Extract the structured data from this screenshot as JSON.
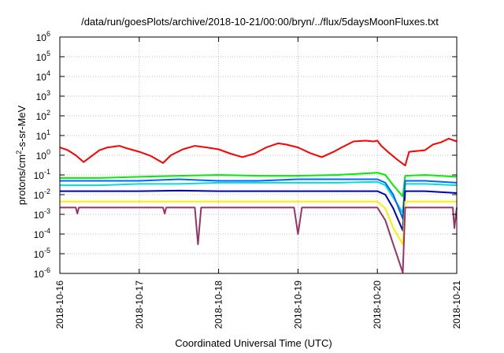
{
  "chart_data": {
    "type": "line",
    "title": "/data/run/goesPlots/archive/2018-10-21/00:00/bryn/../flux/5daysMoonFluxes.txt",
    "xlabel": "Coordinated Universal Time (UTC)",
    "ylabel": {
      "base": "protons/cm",
      "sup": "2",
      "rest": "-s-sr-MeV"
    },
    "yscale": "log",
    "ylim": [
      1e-06,
      1000000.0
    ],
    "xlim": [
      0,
      5
    ],
    "grid": true,
    "x_ticks": [
      {
        "pos": 0,
        "label": "2018-10-16"
      },
      {
        "pos": 1,
        "label": "2018-10-17"
      },
      {
        "pos": 2,
        "label": "2018-10-18"
      },
      {
        "pos": 3,
        "label": "2018-10-19"
      },
      {
        "pos": 4,
        "label": "2018-10-20"
      },
      {
        "pos": 5,
        "label": "2018-10-21"
      }
    ],
    "y_ticks": [
      {
        "exp": -6,
        "label": "10",
        "sup": "-6"
      },
      {
        "exp": -5,
        "label": "10",
        "sup": "-5"
      },
      {
        "exp": -4,
        "label": "10",
        "sup": "-4"
      },
      {
        "exp": -3,
        "label": "10",
        "sup": "-3"
      },
      {
        "exp": -2,
        "label": "10",
        "sup": "-2"
      },
      {
        "exp": -1,
        "label": "10",
        "sup": "-1"
      },
      {
        "exp": 0,
        "label": "10",
        "sup": "0"
      },
      {
        "exp": 1,
        "label": "10",
        "sup": "1"
      },
      {
        "exp": 2,
        "label": "10",
        "sup": "2"
      },
      {
        "exp": 3,
        "label": "10",
        "sup": "3"
      },
      {
        "exp": 4,
        "label": "10",
        "sup": "4"
      },
      {
        "exp": 5,
        "label": "10",
        "sup": "5"
      },
      {
        "exp": 6,
        "label": "10",
        "sup": "6"
      }
    ],
    "series": [
      {
        "color": "#ff0000",
        "points": [
          [
            0,
            2.5
          ],
          [
            0.1,
            1.8
          ],
          [
            0.2,
            1.0
          ],
          [
            0.3,
            0.45
          ],
          [
            0.4,
            0.9
          ],
          [
            0.5,
            1.8
          ],
          [
            0.6,
            2.5
          ],
          [
            0.75,
            3.0
          ],
          [
            0.85,
            2.2
          ],
          [
            1.0,
            1.5
          ],
          [
            1.15,
            0.9
          ],
          [
            1.3,
            0.4
          ],
          [
            1.4,
            1.0
          ],
          [
            1.55,
            2.0
          ],
          [
            1.7,
            3.0
          ],
          [
            1.85,
            2.5
          ],
          [
            2.0,
            2.0
          ],
          [
            2.15,
            1.2
          ],
          [
            2.3,
            0.8
          ],
          [
            2.45,
            1.2
          ],
          [
            2.6,
            2.5
          ],
          [
            2.75,
            4.0
          ],
          [
            2.85,
            3.5
          ],
          [
            3.0,
            2.5
          ],
          [
            3.15,
            1.3
          ],
          [
            3.3,
            0.8
          ],
          [
            3.45,
            1.5
          ],
          [
            3.55,
            2.5
          ],
          [
            3.7,
            5.0
          ],
          [
            3.85,
            5.5
          ],
          [
            3.95,
            5.0
          ],
          [
            4.0,
            5.5
          ],
          [
            4.05,
            3.0
          ],
          [
            4.15,
            1.3
          ],
          [
            4.25,
            0.6
          ],
          [
            4.35,
            0.3
          ],
          [
            4.4,
            1.5
          ],
          [
            4.6,
            1.8
          ],
          [
            4.7,
            3.5
          ],
          [
            4.8,
            4.5
          ],
          [
            4.9,
            7.0
          ],
          [
            5.0,
            5.0
          ]
        ]
      },
      {
        "color": "#00ee00",
        "points": [
          [
            0,
            0.07
          ],
          [
            0.5,
            0.07
          ],
          [
            1.0,
            0.08
          ],
          [
            1.5,
            0.09
          ],
          [
            2.0,
            0.1
          ],
          [
            2.5,
            0.09
          ],
          [
            3.0,
            0.09
          ],
          [
            3.5,
            0.1
          ],
          [
            4.0,
            0.13
          ],
          [
            4.1,
            0.1
          ],
          [
            4.2,
            0.03
          ],
          [
            4.32,
            0.008
          ],
          [
            4.35,
            0.09
          ],
          [
            4.6,
            0.1
          ],
          [
            5.0,
            0.08
          ]
        ]
      },
      {
        "color": "#00dddd",
        "points": [
          [
            0,
            0.03
          ],
          [
            0.5,
            0.03
          ],
          [
            1.0,
            0.035
          ],
          [
            1.5,
            0.035
          ],
          [
            2.0,
            0.04
          ],
          [
            2.5,
            0.04
          ],
          [
            3.0,
            0.04
          ],
          [
            3.5,
            0.04
          ],
          [
            4.0,
            0.045
          ],
          [
            4.1,
            0.03
          ],
          [
            4.2,
            0.007
          ],
          [
            4.32,
            0.0012
          ],
          [
            4.35,
            0.035
          ],
          [
            4.6,
            0.035
          ],
          [
            5.0,
            0.03
          ]
        ]
      },
      {
        "color": "#0066ff",
        "points": [
          [
            0,
            0.05
          ],
          [
            0.5,
            0.05
          ],
          [
            1.0,
            0.05
          ],
          [
            1.5,
            0.06
          ],
          [
            2.0,
            0.05
          ],
          [
            2.5,
            0.05
          ],
          [
            3.0,
            0.06
          ],
          [
            3.5,
            0.06
          ],
          [
            4.0,
            0.06
          ],
          [
            4.1,
            0.04
          ],
          [
            4.2,
            0.01
          ],
          [
            4.32,
            0.0006
          ],
          [
            4.35,
            0.05
          ],
          [
            4.6,
            0.05
          ],
          [
            5.0,
            0.04
          ]
        ]
      },
      {
        "color": "#0000bb",
        "points": [
          [
            0,
            0.015
          ],
          [
            0.5,
            0.015
          ],
          [
            1.0,
            0.015
          ],
          [
            1.5,
            0.016
          ],
          [
            2.0,
            0.015
          ],
          [
            2.5,
            0.015
          ],
          [
            3.0,
            0.015
          ],
          [
            3.5,
            0.015
          ],
          [
            4.0,
            0.015
          ],
          [
            4.1,
            0.01
          ],
          [
            4.2,
            0.002
          ],
          [
            4.32,
            0.00015
          ],
          [
            4.35,
            0.015
          ],
          [
            4.6,
            0.015
          ],
          [
            5.0,
            0.012
          ]
        ]
      },
      {
        "color": "#ffee00",
        "points": [
          [
            0,
            0.0045
          ],
          [
            1.0,
            0.0045
          ],
          [
            2.0,
            0.0045
          ],
          [
            3.0,
            0.0045
          ],
          [
            4.0,
            0.0045
          ],
          [
            4.1,
            0.002
          ],
          [
            4.2,
            0.0002
          ],
          [
            4.32,
            3e-05
          ],
          [
            4.35,
            0.0045
          ],
          [
            5.0,
            0.0045
          ]
        ]
      },
      {
        "color": "#993366",
        "points": [
          [
            0,
            0.0022
          ],
          [
            0.2,
            0.0022
          ],
          [
            0.22,
            0.0011
          ],
          [
            0.24,
            0.0022
          ],
          [
            1.0,
            0.0022
          ],
          [
            1.3,
            0.0022
          ],
          [
            1.32,
            0.0011
          ],
          [
            1.34,
            0.0022
          ],
          [
            1.7,
            0.0022
          ],
          [
            1.74,
            3e-05
          ],
          [
            1.78,
            0.0022
          ],
          [
            2.95,
            0.0022
          ],
          [
            3.0,
            0.0001
          ],
          [
            3.05,
            0.0022
          ],
          [
            4.0,
            0.0022
          ],
          [
            4.1,
            0.0005
          ],
          [
            4.2,
            3e-05
          ],
          [
            4.32,
            1.1e-06
          ],
          [
            4.35,
            0.0022
          ],
          [
            4.95,
            0.0022
          ],
          [
            4.97,
            0.0002
          ],
          [
            5.0,
            0.0022
          ]
        ]
      }
    ]
  }
}
